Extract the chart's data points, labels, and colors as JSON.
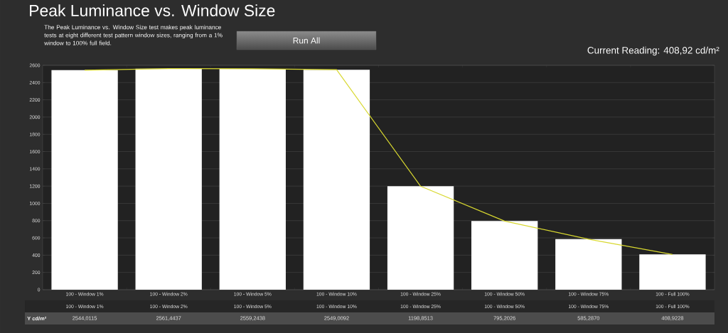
{
  "chart_data": {
    "type": "bar",
    "title": "Peak Luminance vs. Window Size",
    "subtitle": "The Peak Luminance vs. Window Size test makes peak luminance tests at eight different test pattern window sizes, ranging from a 1% window to 100% full field.",
    "annotations": [
      "Run All",
      "Current Reading: 408,92 cd/m²"
    ],
    "categories": [
      "100 - Window  1%",
      "100 - Window  2%",
      "100 - Window  5%",
      "100 - Window 10%",
      "100 - Window 25%",
      "100 - Window 50%",
      "100 - Window 75%",
      "100 - Full  100%"
    ],
    "series": [
      {
        "type": "line",
        "color": "#d8d830",
        "values": [
          2544.0115,
          2561.4437,
          2559.2438,
          2549.0092,
          1198.8513,
          795.2026,
          585.287,
          408.9228
        ]
      },
      {
        "type": "bar",
        "name": "Y cd/m²",
        "color": "#ffffff",
        "values": [
          2544.0115,
          2561.4437,
          2559.2438,
          2549.0092,
          1198.8513,
          795.2026,
          585.287,
          408.9228
        ],
        "value_labels": [
          "2544,0115",
          "2561,4437",
          "2559,2438",
          "2549,0092",
          "1198,8513",
          "795,2026",
          "585,2870",
          "408,9228"
        ]
      }
    ],
    "ylim": [
      0,
      2600
    ],
    "yticks": [
      0,
      200,
      400,
      600,
      800,
      1000,
      1200,
      1400,
      1600,
      1800,
      2000,
      2200,
      2400,
      2600
    ],
    "grid": "y",
    "legend": false,
    "marker": "none",
    "line_style": "solid"
  }
}
